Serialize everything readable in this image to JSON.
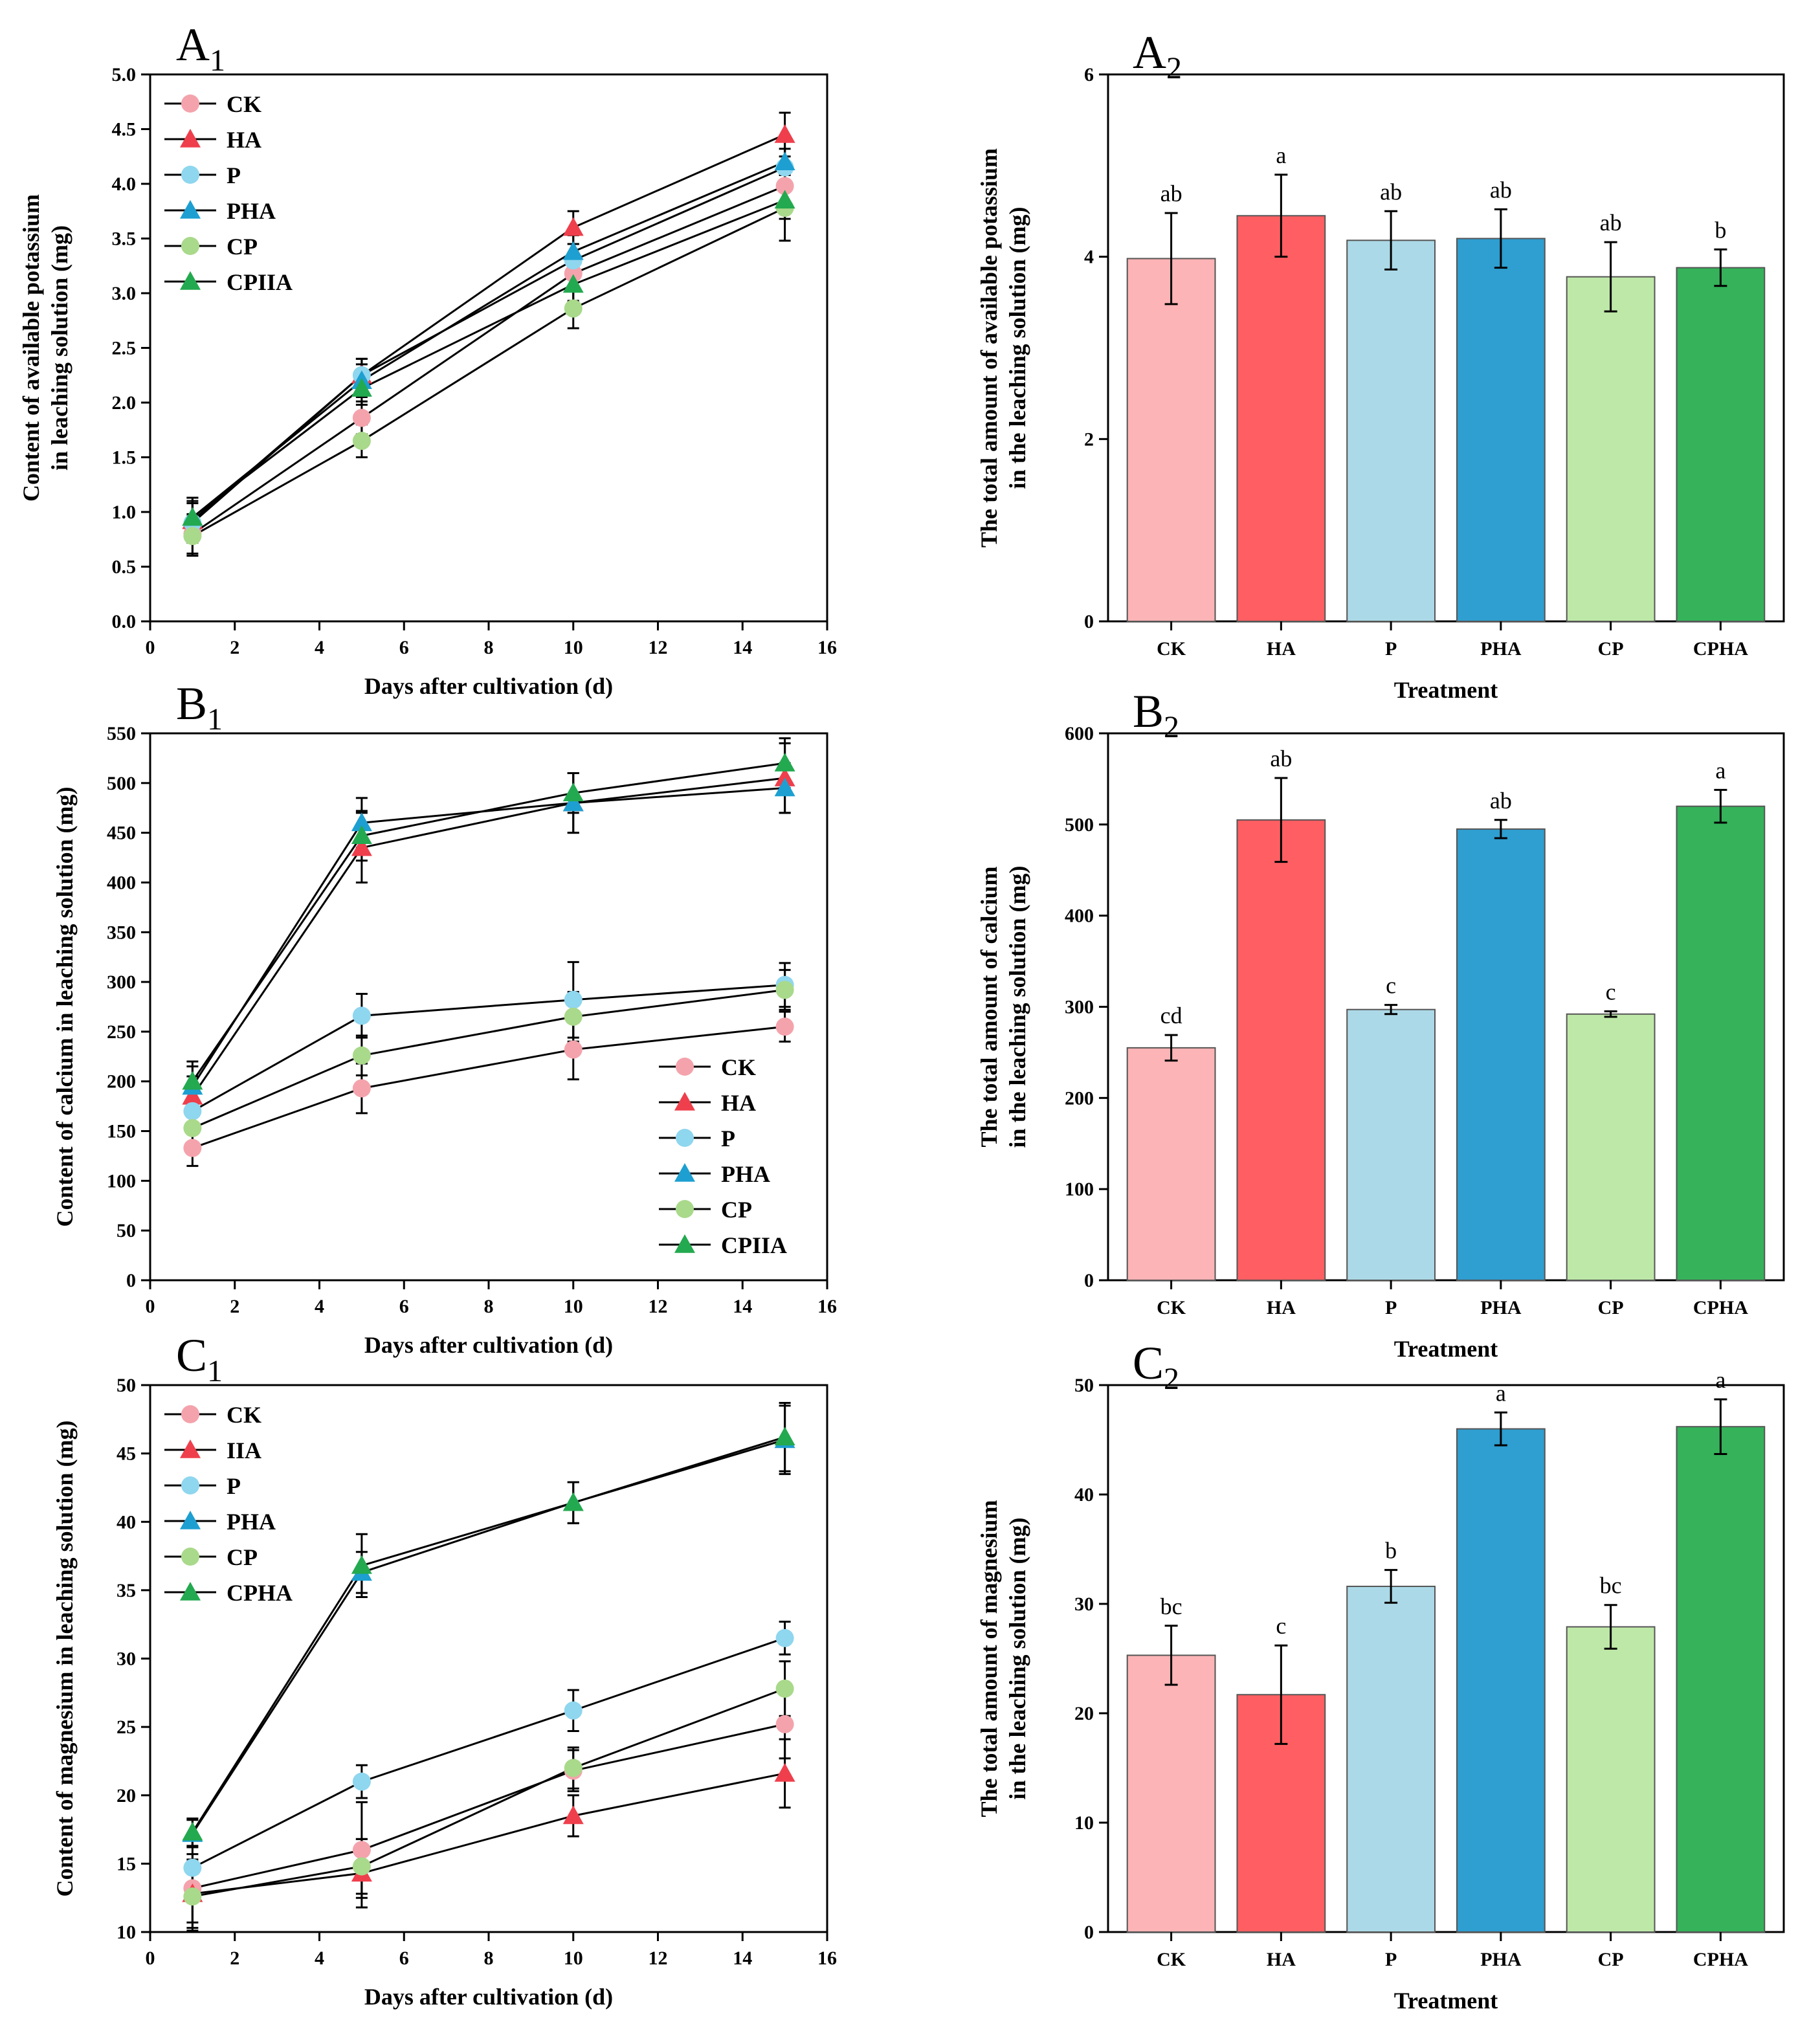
{
  "palette": {
    "CK": "#f4a3ac",
    "HA": "#ef3f4c",
    "P": "#8fd6ef",
    "PHA": "#1d9fd1",
    "CP": "#a9d98a",
    "CPHA": "#23a94f",
    "bar_CK": "#fdb4b6",
    "bar_HA": "#ff5f62",
    "bar_P": "#acd9e7",
    "bar_PHA": "#2f9ed0",
    "bar_CP": "#bee8a8",
    "bar_CPHA": "#35b25a"
  },
  "marker_icons": {
    "CK": "circle-marker-icon",
    "HA": "triangle-marker-icon",
    "P": "circle-marker-icon",
    "PHA": "triangle-marker-icon",
    "CP": "circle-marker-icon",
    "CPHA": "triangle-marker-icon"
  },
  "chart_data": [
    {
      "id": "A1",
      "type": "line",
      "panel": "A",
      "panel_sub": "1",
      "xlabel": "Days after cultivation (d)",
      "ylabel_lines": [
        "Content of available potassium",
        "in leaching solution (mg)"
      ],
      "xlim": [
        0,
        16
      ],
      "ylim": [
        0,
        5
      ],
      "x_ticks": [
        "0",
        "2",
        "4",
        "6",
        "8",
        "10",
        "12",
        "14",
        "16"
      ],
      "y_ticks": [
        "0.0",
        "0.5",
        "1.0",
        "1.5",
        "2.0",
        "2.5",
        "3.0",
        "3.5",
        "4.0",
        "4.5",
        "5.0"
      ],
      "legend_position": "top-left",
      "legend_labels": [
        "CK",
        "HA",
        "P",
        "PHA",
        "CP",
        "CPIIA"
      ],
      "x": [
        1,
        5,
        10,
        15
      ],
      "series": [
        {
          "name": "CK",
          "marker": "circle",
          "values": [
            0.8,
            1.86,
            3.18,
            3.98
          ],
          "errors": [
            0.18,
            0.15,
            0.15,
            0.17
          ]
        },
        {
          "name": "HA",
          "marker": "triangle",
          "values": [
            0.92,
            2.25,
            3.6,
            4.45
          ],
          "errors": [
            0.18,
            0.15,
            0.15,
            0.2
          ]
        },
        {
          "name": "P",
          "marker": "circle",
          "values": [
            0.9,
            2.25,
            3.3,
            4.15
          ],
          "errors": [
            0.18,
            0.15,
            0.15,
            0.17
          ]
        },
        {
          "name": "PHA",
          "marker": "triangle",
          "values": [
            0.95,
            2.2,
            3.38,
            4.2
          ],
          "errors": [
            0.18,
            0.15,
            0.15,
            0.2
          ]
        },
        {
          "name": "CP",
          "marker": "circle",
          "values": [
            0.78,
            1.65,
            2.86,
            3.78
          ],
          "errors": [
            0.18,
            0.15,
            0.18,
            0.3
          ]
        },
        {
          "name": "CPHA",
          "marker": "triangle",
          "values": [
            0.95,
            2.13,
            3.08,
            3.85
          ],
          "errors": [
            0.18,
            0.15,
            0.15,
            0.17
          ]
        }
      ]
    },
    {
      "id": "A2",
      "type": "bar",
      "panel": "A",
      "panel_sub": "2",
      "xlabel": "Treatment",
      "ylabel_lines": [
        "The total amount of available potassium",
        "in the leaching solution (mg)"
      ],
      "ylim": [
        0,
        6
      ],
      "y_ticks": [
        "0",
        "2",
        "4",
        "6"
      ],
      "categories": [
        "CK",
        "HA",
        "P",
        "PHA",
        "CP",
        "CPHA"
      ],
      "values": [
        3.98,
        4.45,
        4.18,
        4.2,
        3.78,
        3.88
      ],
      "errors": [
        0.5,
        0.45,
        0.32,
        0.32,
        0.38,
        0.2
      ],
      "letters": [
        "ab",
        "a",
        "ab",
        "ab",
        "ab",
        "b"
      ]
    },
    {
      "id": "B1",
      "type": "line",
      "panel": "B",
      "panel_sub": "1",
      "xlabel": "Days after cultivation (d)",
      "ylabel_lines": [
        "Content of calcium in leaching solution (mg)"
      ],
      "xlim": [
        0,
        16
      ],
      "ylim": [
        0,
        550
      ],
      "x_ticks": [
        "0",
        "2",
        "4",
        "6",
        "8",
        "10",
        "12",
        "14",
        "16"
      ],
      "y_ticks": [
        "0",
        "50",
        "100",
        "150",
        "200",
        "250",
        "300",
        "350",
        "400",
        "450",
        "500",
        "550"
      ],
      "legend_position": "bottom-right",
      "legend_labels": [
        "CK",
        "HA",
        "P",
        "PHA",
        "CP",
        "CPIIA"
      ],
      "x": [
        1,
        5,
        10,
        15
      ],
      "series": [
        {
          "name": "CK",
          "marker": "circle",
          "values": [
            133,
            193,
            232,
            255
          ],
          "errors": [
            18,
            25,
            30,
            15
          ]
        },
        {
          "name": "HA",
          "marker": "triangle",
          "values": [
            185,
            435,
            480,
            505
          ],
          "errors": [
            20,
            35,
            30,
            35
          ]
        },
        {
          "name": "P",
          "marker": "circle",
          "values": [
            170,
            266,
            282,
            297
          ],
          "errors": [
            18,
            22,
            38,
            22
          ]
        },
        {
          "name": "PHA",
          "marker": "triangle",
          "values": [
            195,
            460,
            480,
            495
          ],
          "errors": [
            20,
            25,
            30,
            25
          ]
        },
        {
          "name": "CP",
          "marker": "circle",
          "values": [
            153,
            226,
            265,
            292
          ],
          "errors": [
            18,
            20,
            25,
            20
          ]
        },
        {
          "name": "CPHA",
          "marker": "triangle",
          "values": [
            200,
            447,
            490,
            520
          ],
          "errors": [
            20,
            25,
            20,
            25
          ]
        }
      ]
    },
    {
      "id": "B2",
      "type": "bar",
      "panel": "B",
      "panel_sub": "2",
      "xlabel": "Treatment",
      "ylabel_lines": [
        "The total amount of calcium",
        "in the leaching solution (mg)"
      ],
      "ylim": [
        0,
        600
      ],
      "y_ticks": [
        "0",
        "100",
        "200",
        "300",
        "400",
        "500",
        "600"
      ],
      "categories": [
        "CK",
        "HA",
        "P",
        "PHA",
        "CP",
        "CPHA"
      ],
      "values": [
        255,
        505,
        297,
        495,
        292,
        520
      ],
      "errors": [
        14,
        46,
        5,
        10,
        3,
        18
      ],
      "letters": [
        "cd",
        "ab",
        "c",
        "ab",
        "c",
        "a"
      ]
    },
    {
      "id": "C1",
      "type": "line",
      "panel": "C",
      "panel_sub": "1",
      "xlabel": "Days after cultivation (d)",
      "ylabel_lines": [
        "Content of magnesium in leaching solution (mg)"
      ],
      "xlim": [
        0,
        16
      ],
      "ylim": [
        10,
        50
      ],
      "x_ticks": [
        "0",
        "2",
        "4",
        "6",
        "8",
        "10",
        "12",
        "14",
        "16"
      ],
      "y_ticks": [
        "10",
        "15",
        "20",
        "25",
        "30",
        "35",
        "40",
        "45",
        "50"
      ],
      "legend_position": "top-left",
      "legend_labels": [
        "CK",
        "IIA",
        "P",
        "PHA",
        "CP",
        "CPHA"
      ],
      "x": [
        1,
        5,
        10,
        15
      ],
      "series": [
        {
          "name": "CK",
          "marker": "circle",
          "values": [
            13.2,
            16.0,
            21.8,
            25.2
          ],
          "errors": [
            2.5,
            3.5,
            1.5,
            2.5
          ]
        },
        {
          "name": "HA",
          "marker": "triangle",
          "values": [
            12.8,
            14.3,
            18.5,
            21.6
          ],
          "errors": [
            2.5,
            2.5,
            1.5,
            2.5
          ]
        },
        {
          "name": "P",
          "marker": "circle",
          "values": [
            14.7,
            21.0,
            26.2,
            31.5
          ],
          "errors": [
            2.5,
            1.2,
            1.5,
            1.2
          ]
        },
        {
          "name": "PHA",
          "marker": "triangle",
          "values": [
            17.2,
            36.3,
            41.4,
            46.0
          ],
          "errors": [
            1.0,
            1.5,
            1.5,
            2.5
          ]
        },
        {
          "name": "CP",
          "marker": "circle",
          "values": [
            12.6,
            14.8,
            22.0,
            27.8
          ],
          "errors": [
            2.5,
            2.0,
            1.5,
            2.0
          ]
        },
        {
          "name": "CPHA",
          "marker": "triangle",
          "values": [
            17.3,
            36.8,
            41.4,
            46.2
          ],
          "errors": [
            1.0,
            2.3,
            1.5,
            2.5
          ]
        }
      ]
    },
    {
      "id": "C2",
      "type": "bar",
      "panel": "C",
      "panel_sub": "2",
      "xlabel": "Treatment",
      "ylabel_lines": [
        "The total amount of magnesium",
        "in the leaching solution (mg)"
      ],
      "ylim": [
        0,
        50
      ],
      "y_ticks": [
        "0",
        "10",
        "20",
        "30",
        "40",
        "50"
      ],
      "categories": [
        "CK",
        "HA",
        "P",
        "PHA",
        "CP",
        "CPHA"
      ],
      "values": [
        25.3,
        21.7,
        31.6,
        46.0,
        27.9,
        46.2
      ],
      "errors": [
        2.7,
        4.5,
        1.5,
        1.5,
        2.0,
        2.5
      ],
      "letters": [
        "bc",
        "c",
        "b",
        "a",
        "bc",
        "a"
      ]
    }
  ]
}
